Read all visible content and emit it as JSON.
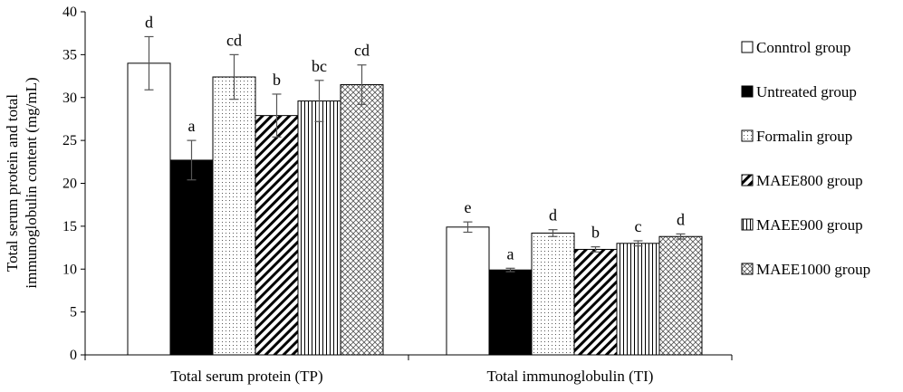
{
  "chart_data": {
    "type": "bar",
    "title": "",
    "xlabel": "",
    "ylabel": "Total serum protein and total immunoglobulin content (mg/mL)",
    "ylabel_lines": [
      "Total serum protein and total",
      "immunoglobulin content (mg/mL)"
    ],
    "ylim": [
      0,
      40
    ],
    "yticks": [
      0,
      5,
      10,
      15,
      20,
      25,
      30,
      35,
      40
    ],
    "categories": [
      "Total serum protein (TP)",
      "Total immunoglobulin (TI)"
    ],
    "legend_position": "right",
    "series": [
      {
        "name": "Conntrol group",
        "pattern": "white",
        "values": [
          34.0,
          14.9
        ],
        "errors": [
          3.1,
          0.6
        ],
        "letters": [
          "d",
          "e"
        ]
      },
      {
        "name": "Untreated group",
        "pattern": "black",
        "values": [
          22.7,
          9.9
        ],
        "errors": [
          2.3,
          0.2
        ],
        "letters": [
          "a",
          "a"
        ]
      },
      {
        "name": "Formalin group",
        "pattern": "dots",
        "values": [
          32.4,
          14.2
        ],
        "errors": [
          2.6,
          0.4
        ],
        "letters": [
          "cd",
          "d"
        ]
      },
      {
        "name": "MAEE800 group",
        "pattern": "diagonal",
        "values": [
          27.9,
          12.3
        ],
        "errors": [
          2.5,
          0.3
        ],
        "letters": [
          "b",
          "b"
        ]
      },
      {
        "name": "MAEE900 group",
        "pattern": "vertical",
        "values": [
          29.6,
          13.0
        ],
        "errors": [
          2.4,
          0.3
        ],
        "letters": [
          "bc",
          "c"
        ]
      },
      {
        "name": "MAEE1000 group",
        "pattern": "crosshatch",
        "values": [
          31.5,
          13.8
        ],
        "errors": [
          2.3,
          0.3
        ],
        "letters": [
          "cd",
          "d"
        ]
      }
    ]
  }
}
